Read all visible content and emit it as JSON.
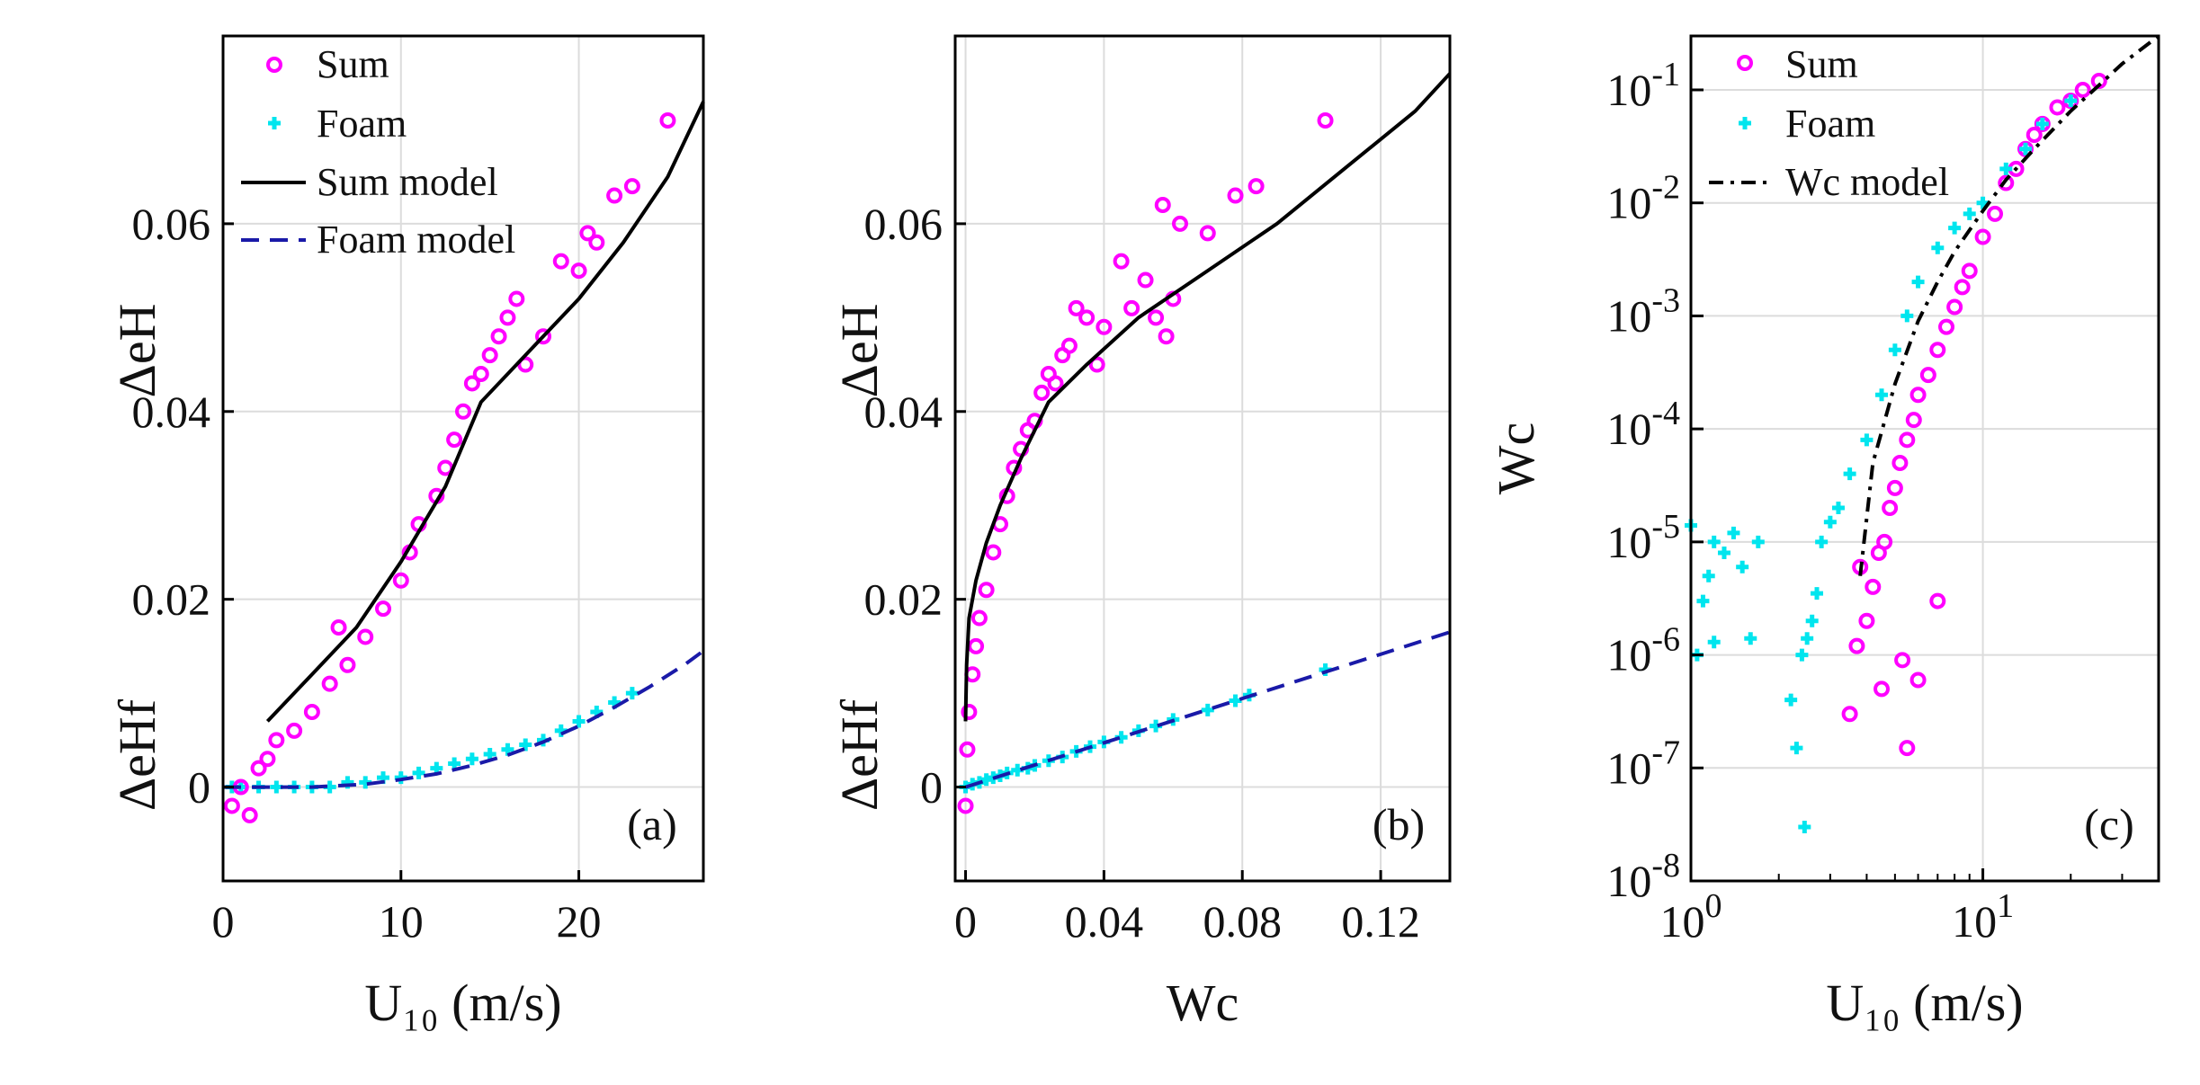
{
  "figure": {
    "title": ""
  },
  "colors": {
    "sum": "#ff00ff",
    "foam": "#00e5ee",
    "sum_model": "#000000",
    "foam_model": "#1a1aa8",
    "wc_model": "#000000",
    "grid": "#dcdcdc"
  },
  "chart_data": [
    {
      "id": "a",
      "type": "scatter",
      "panel_label": "(a)",
      "xlabel": "U₁₀ (m/s)",
      "ylabel_top": "ΔeH",
      "ylabel_bottom": "ΔeHf",
      "xlim": [
        0,
        27
      ],
      "ylim": [
        -0.01,
        0.08
      ],
      "xticks": [
        0,
        10,
        20
      ],
      "xtick_labels": [
        "0",
        "10",
        "20"
      ],
      "yticks": [
        0,
        0.02,
        0.04,
        0.06
      ],
      "ytick_labels": [
        "0",
        "0.02",
        "0.04",
        "0.06"
      ],
      "grid": true,
      "legend_position": "top-left",
      "legend": [
        "Sum",
        "Foam",
        "Sum model",
        "Foam model"
      ],
      "series": [
        {
          "name": "Sum",
          "kind": "markers",
          "marker": "circle",
          "x": [
            0.5,
            1.0,
            1.5,
            2.0,
            2.5,
            3.0,
            4.0,
            5.0,
            6.0,
            6.5,
            7.0,
            8.0,
            9.0,
            10.0,
            10.5,
            11.0,
            12.0,
            12.5,
            13.0,
            13.5,
            14.0,
            14.5,
            15.0,
            15.5,
            16.0,
            16.5,
            17.0,
            18.0,
            19.0,
            20.0,
            20.5,
            21.0,
            22.0,
            23.0,
            25.0
          ],
          "y": [
            -0.002,
            0.0,
            -0.003,
            0.002,
            0.003,
            0.005,
            0.006,
            0.008,
            0.011,
            0.017,
            0.013,
            0.016,
            0.019,
            0.022,
            0.025,
            0.028,
            0.031,
            0.034,
            0.037,
            0.04,
            0.043,
            0.044,
            0.046,
            0.048,
            0.05,
            0.052,
            0.045,
            0.048,
            0.056,
            0.055,
            0.059,
            0.058,
            0.063,
            0.064,
            0.071
          ]
        },
        {
          "name": "Foam",
          "kind": "markers",
          "marker": "plus",
          "x": [
            0.5,
            1.0,
            2.0,
            3.0,
            4.0,
            5.0,
            6.0,
            7.0,
            8.0,
            9.0,
            10.0,
            11.0,
            12.0,
            13.0,
            14.0,
            15.0,
            16.0,
            17.0,
            18.0,
            19.0,
            20.0,
            21.0,
            22.0,
            23.0
          ],
          "y": [
            0.0,
            0.0,
            0.0,
            0.0,
            0.0,
            0.0,
            0.0,
            0.0005,
            0.0005,
            0.001,
            0.001,
            0.0015,
            0.002,
            0.0025,
            0.003,
            0.0035,
            0.004,
            0.0045,
            0.005,
            0.006,
            0.007,
            0.008,
            0.009,
            0.01
          ]
        },
        {
          "name": "Sum model",
          "kind": "line",
          "style": "solid",
          "x": [
            2.5,
            5,
            7.5,
            10,
            12.5,
            14.5,
            17,
            20,
            22.5,
            25,
            27
          ],
          "y": [
            0.007,
            0.012,
            0.017,
            0.024,
            0.032,
            0.041,
            0.046,
            0.052,
            0.058,
            0.065,
            0.073
          ]
        },
        {
          "name": "Foam model",
          "kind": "line",
          "style": "dashed",
          "x": [
            0,
            5,
            8,
            10,
            12,
            14,
            16,
            18,
            20,
            22,
            24,
            26,
            27
          ],
          "y": [
            0.0,
            0.0,
            0.0003,
            0.0008,
            0.0014,
            0.0023,
            0.0034,
            0.0048,
            0.0065,
            0.0085,
            0.0107,
            0.0131,
            0.0145
          ]
        }
      ]
    },
    {
      "id": "b",
      "type": "scatter",
      "panel_label": "(b)",
      "xlabel": "Wc",
      "ylabel_top": "ΔeH",
      "ylabel_bottom": "ΔeHf",
      "xlim": [
        -0.003,
        0.14
      ],
      "ylim": [
        -0.01,
        0.08
      ],
      "xticks": [
        0,
        0.04,
        0.08,
        0.12
      ],
      "xtick_labels": [
        "0",
        "0.04",
        "0.08",
        "0.12"
      ],
      "yticks": [
        0,
        0.02,
        0.04,
        0.06
      ],
      "ytick_labels": [
        "0",
        "0.02",
        "0.04",
        "0.06"
      ],
      "grid": true,
      "legend_position": "none",
      "series": [
        {
          "name": "Sum",
          "kind": "markers",
          "marker": "circle",
          "x": [
            0.0,
            0.0005,
            0.001,
            0.002,
            0.003,
            0.004,
            0.006,
            0.008,
            0.01,
            0.012,
            0.014,
            0.016,
            0.018,
            0.02,
            0.022,
            0.024,
            0.026,
            0.028,
            0.03,
            0.032,
            0.035,
            0.038,
            0.04,
            0.045,
            0.048,
            0.052,
            0.055,
            0.057,
            0.058,
            0.06,
            0.062,
            0.07,
            0.078,
            0.084,
            0.104
          ],
          "y": [
            -0.002,
            0.004,
            0.008,
            0.012,
            0.015,
            0.018,
            0.021,
            0.025,
            0.028,
            0.031,
            0.034,
            0.036,
            0.038,
            0.039,
            0.042,
            0.044,
            0.043,
            0.046,
            0.047,
            0.051,
            0.05,
            0.045,
            0.049,
            0.056,
            0.051,
            0.054,
            0.05,
            0.062,
            0.048,
            0.052,
            0.06,
            0.059,
            0.063,
            0.064,
            0.071
          ]
        },
        {
          "name": "Foam",
          "kind": "markers",
          "marker": "plus",
          "x": [
            0.0,
            0.002,
            0.004,
            0.006,
            0.008,
            0.01,
            0.012,
            0.015,
            0.018,
            0.02,
            0.024,
            0.028,
            0.032,
            0.036,
            0.04,
            0.045,
            0.05,
            0.055,
            0.06,
            0.07,
            0.078,
            0.082,
            0.104
          ],
          "y": [
            0.0,
            0.0003,
            0.0005,
            0.0008,
            0.001,
            0.0012,
            0.0015,
            0.0018,
            0.002,
            0.0023,
            0.0028,
            0.0032,
            0.0038,
            0.0043,
            0.0048,
            0.0053,
            0.006,
            0.0065,
            0.0072,
            0.0082,
            0.0092,
            0.0098,
            0.0125
          ]
        },
        {
          "name": "Sum model",
          "kind": "line",
          "style": "solid",
          "x": [
            0.0,
            0.0003,
            0.001,
            0.003,
            0.006,
            0.01,
            0.016,
            0.024,
            0.035,
            0.05,
            0.07,
            0.09,
            0.11,
            0.13,
            0.14
          ],
          "y": [
            0.007,
            0.013,
            0.018,
            0.022,
            0.026,
            0.03,
            0.035,
            0.041,
            0.045,
            0.05,
            0.055,
            0.06,
            0.066,
            0.072,
            0.076
          ]
        },
        {
          "name": "Foam model",
          "kind": "line",
          "style": "dashed",
          "x": [
            0.0,
            0.14
          ],
          "y": [
            0.0,
            0.0165
          ]
        }
      ]
    },
    {
      "id": "c",
      "type": "scatter",
      "panel_label": "(c)",
      "scale": "loglog",
      "xlabel": "U₁₀ (m/s)",
      "ylabel": "Wc",
      "xlim": [
        1,
        40
      ],
      "ylim": [
        1e-08,
        0.3
      ],
      "xtick_labels": [
        "10^0",
        "10^1"
      ],
      "ytick_labels": [
        "10^-8",
        "10^-7",
        "10^-6",
        "10^-5",
        "10^-4",
        "10^-3",
        "10^-2",
        "10^-1"
      ],
      "grid": true,
      "legend_position": "top-left",
      "legend": [
        "Sum",
        "Foam",
        "Wc model"
      ],
      "series": [
        {
          "name": "Sum",
          "kind": "markers",
          "marker": "circle",
          "x": [
            3.5,
            3.7,
            4.0,
            4.2,
            4.4,
            4.6,
            4.8,
            5.0,
            5.2,
            5.5,
            5.8,
            6.0,
            6.5,
            7.0,
            7.5,
            8.0,
            8.5,
            9.0,
            10.0,
            11.0,
            12.0,
            13.0,
            14.0,
            15.0,
            16.0,
            18.0,
            20.0,
            22.0,
            25.0,
            4.5,
            5.5,
            6.0,
            7.0,
            3.8,
            5.3
          ],
          "y": [
            3e-07,
            1.2e-06,
            2e-06,
            4e-06,
            8e-06,
            1e-05,
            2e-05,
            3e-05,
            5e-05,
            8e-05,
            0.00012,
            0.0002,
            0.0003,
            0.0005,
            0.0008,
            0.0012,
            0.0018,
            0.0025,
            0.005,
            0.008,
            0.015,
            0.02,
            0.03,
            0.04,
            0.05,
            0.07,
            0.08,
            0.1,
            0.12,
            5e-07,
            1.5e-07,
            6e-07,
            3e-06,
            6e-06,
            9e-07
          ]
        },
        {
          "name": "Foam",
          "kind": "markers",
          "marker": "plus",
          "x": [
            1.0,
            1.05,
            1.1,
            1.15,
            1.2,
            1.3,
            1.4,
            1.5,
            1.6,
            1.7,
            1.2,
            2.2,
            2.3,
            2.4,
            2.45,
            2.5,
            2.6,
            2.7,
            2.8,
            3.0,
            3.2,
            3.5,
            4.0,
            4.5,
            5.0,
            5.5,
            6.0,
            7.0,
            8.0,
            9.0,
            10.0,
            12.0,
            14.0,
            16.0,
            20.0
          ],
          "y": [
            1.4e-05,
            1e-06,
            3e-06,
            5e-06,
            1e-05,
            8e-06,
            1.2e-05,
            6e-06,
            1.4e-06,
            1e-05,
            1.3e-06,
            4e-07,
            1.5e-07,
            1e-06,
            3e-08,
            1.4e-06,
            2e-06,
            3.5e-06,
            1e-05,
            1.5e-05,
            2e-05,
            4e-05,
            8e-05,
            0.0002,
            0.0005,
            0.001,
            0.002,
            0.004,
            0.006,
            0.008,
            0.01,
            0.02,
            0.03,
            0.05,
            0.08
          ]
        },
        {
          "name": "Wc model",
          "kind": "line",
          "style": "dashdot",
          "x": [
            3.8,
            4.2,
            5.0,
            6.0,
            7.0,
            8.0,
            10.0,
            12.0,
            15.0,
            20.0,
            25.0,
            30.0,
            40.0
          ],
          "y": [
            5e-06,
            5e-05,
            0.00025,
            0.0009,
            0.002,
            0.0037,
            0.0085,
            0.016,
            0.03,
            0.065,
            0.11,
            0.17,
            0.3
          ]
        }
      ]
    }
  ]
}
